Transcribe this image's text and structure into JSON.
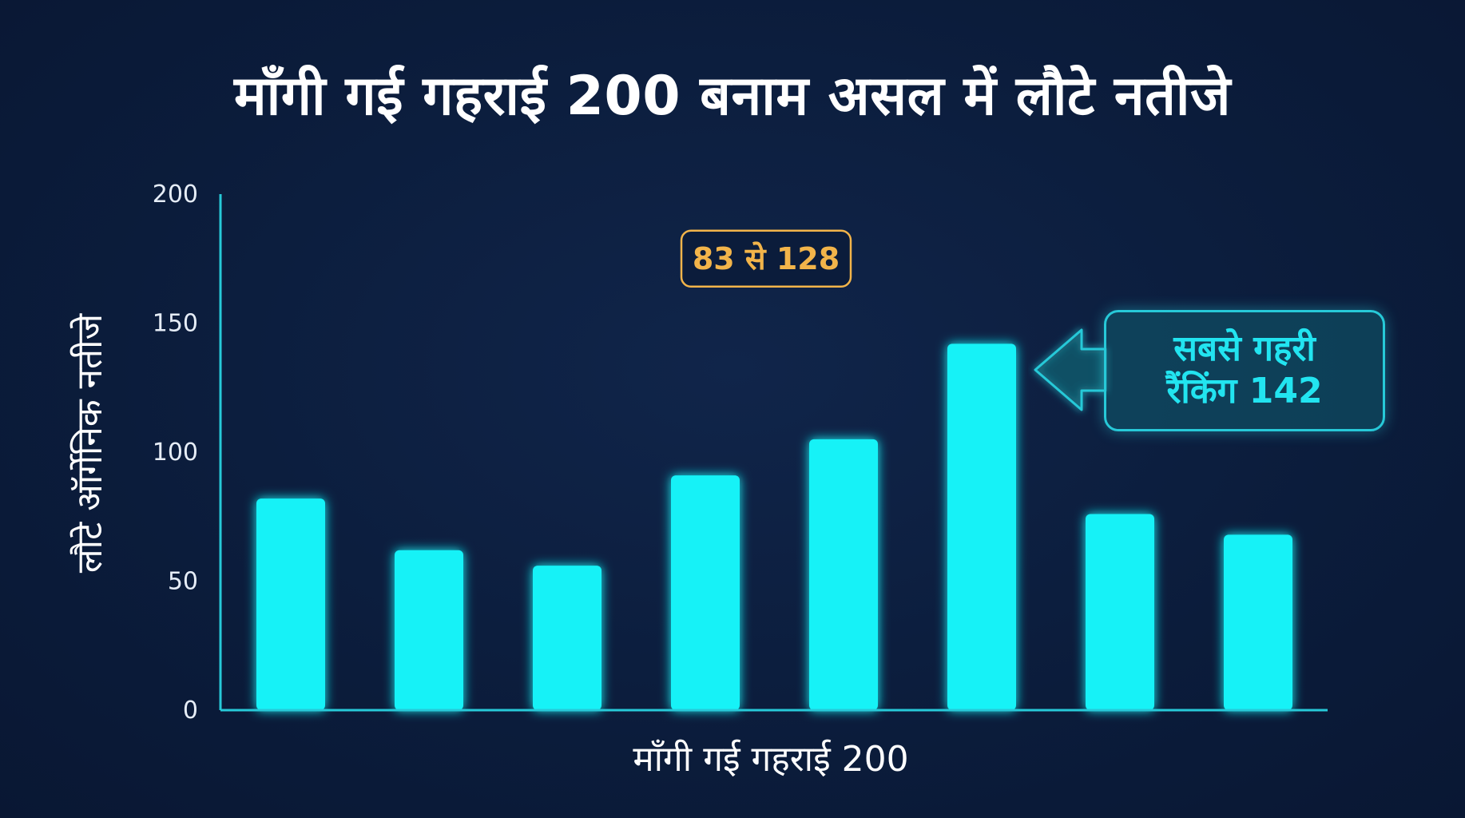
{
  "title": "माँगी गई गहराई 200 बनाम असल में लौटे नतीजे",
  "callout": {
    "line1": "सबसे गहरी",
    "line2": "रैंकिंग 142"
  },
  "colors": {
    "background": "#0b1c3b",
    "bar": "#12f2f7",
    "axis": "#27c9d8",
    "reference": "#f2b44a",
    "text": "#ffffff"
  },
  "chart_data": {
    "type": "bar",
    "title": "माँगी गई गहराई 200 बनाम असल में लौटे नतीजे",
    "xlabel": "माँगी गई गहराई 200",
    "ylabel": "लौटे ऑर्गेनिक नतीजे",
    "ylim": [
      0,
      200
    ],
    "yticks": [
      0,
      50,
      100,
      150,
      200
    ],
    "grid": false,
    "values": [
      82,
      62,
      56,
      91,
      105,
      142,
      76,
      68
    ],
    "reference_line": {
      "value": 175,
      "label": "83 से 128"
    }
  }
}
